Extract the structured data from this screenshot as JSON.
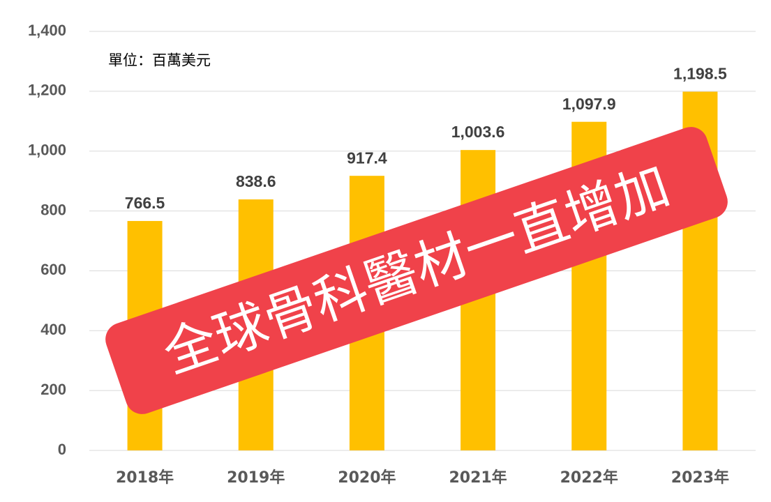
{
  "chart_data": {
    "type": "bar",
    "categories": [
      "2018年",
      "2019年",
      "2020年",
      "2021年",
      "2022年",
      "2023年"
    ],
    "values": [
      766.5,
      838.6,
      917.4,
      1003.6,
      1097.9,
      1198.5
    ],
    "value_labels": [
      "766.5",
      "838.6",
      "917.4",
      "1,003.6",
      "1,097.9",
      "1,198.5"
    ],
    "color": "#ffc000",
    "ylim": [
      0,
      1400
    ],
    "yticks": [
      0,
      200,
      400,
      600,
      800,
      {
        "value": 1000,
        "label": "1,000"
      },
      {
        "value": 1200,
        "label": "1,200"
      },
      {
        "value": 1400,
        "label": "1,400"
      }
    ],
    "grid": true,
    "annotations": [
      "單位：百萬美元",
      "全球骨科醫材一直增加"
    ]
  }
}
